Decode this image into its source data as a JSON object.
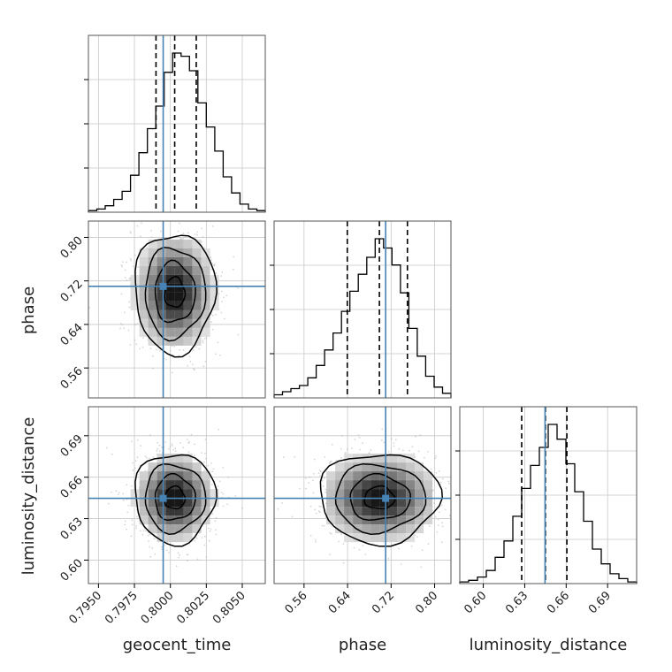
{
  "chart_data": {
    "type": "corner",
    "parameters": [
      "geocent_time",
      "phase",
      "luminosity_distance"
    ],
    "ranges": {
      "geocent_time": [
        0.7943,
        0.8066
      ],
      "phase": [
        0.505,
        0.83
      ],
      "luminosity_distance": [
        0.583,
        0.711
      ]
    },
    "ticks": {
      "geocent_time": [
        "0.7950",
        "0.7975",
        "0.8000",
        "0.8025",
        "0.8050"
      ],
      "phase": [
        "0.56",
        "0.64",
        "0.72",
        "0.80"
      ],
      "luminosity_distance": [
        "0.60",
        "0.63",
        "0.66",
        "0.69"
      ]
    },
    "truths": {
      "geocent_time": 0.7995,
      "phase": 0.71,
      "luminosity_distance": 0.6447
    },
    "quantiles": {
      "geocent_time": [
        0.799,
        0.8003,
        0.8018
      ],
      "phase": [
        0.6395,
        0.6985,
        0.75
      ],
      "luminosity_distance": [
        0.6278,
        0.645,
        0.6605
      ]
    },
    "histograms": {
      "geocent_time": [
        1,
        2,
        4,
        8,
        13,
        23,
        37,
        52,
        66,
        87,
        99,
        97,
        88,
        68,
        53,
        38,
        22,
        12,
        5,
        2,
        1
      ],
      "phase": [
        2,
        4,
        6,
        8,
        13,
        21,
        31,
        42,
        56,
        69,
        80,
        91,
        103,
        97,
        86,
        68,
        45,
        27,
        14,
        7,
        3
      ],
      "luminosity_distance": [
        1,
        2,
        4,
        8,
        16,
        26,
        41,
        58,
        72,
        83,
        97,
        88,
        73,
        56,
        38,
        21,
        12,
        6,
        3,
        1
      ]
    },
    "samples": 5000,
    "contour_levels": 4,
    "grid": true,
    "colors": {
      "truth": "#4682b4",
      "hist": "#000000",
      "points": "#b4b4b4",
      "grid": "#c8c8c8"
    }
  }
}
